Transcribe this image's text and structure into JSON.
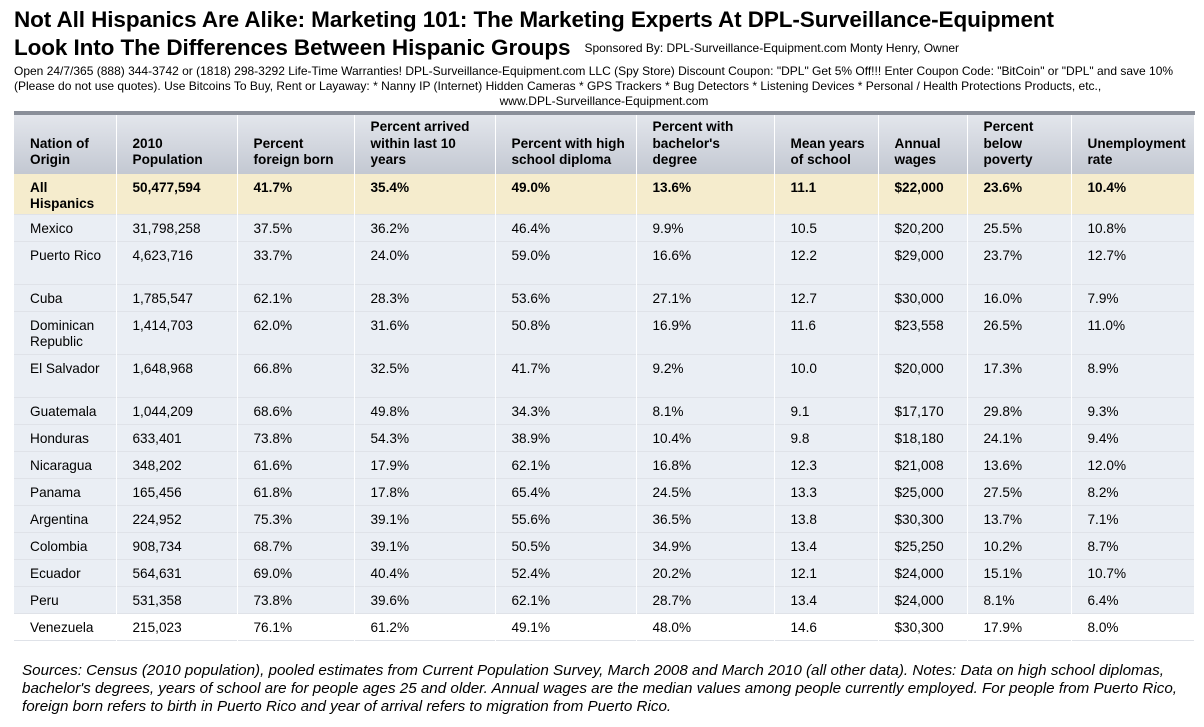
{
  "title": {
    "line1": "Not All Hispanics Are Alike:  Marketing 101: The Marketing Experts At DPL-Surveillance-Equipment",
    "line2": "Look Into The Differences Between Hispanic Groups",
    "sponsor": "Sponsored By: DPL-Surveillance-Equipment.com  Monty Henry, Owner"
  },
  "promo": {
    "text": "Open 24/7/365 (888) 344-3742 or (1818) 298-3292  Life-Time Warranties! DPL-Surveillance-Equipment.com LLC (Spy Store) Discount Coupon: \"DPL\" Get 5% Off!!! Enter Coupon Code: \"BitCoin\" or \"DPL\" and save 10% (Please do not use quotes). Use Bitcoins To Buy, Rent or Layaway:  * Nanny IP (Internet) Hidden Cameras  * GPS Trackers * Bug Detectors  * Listening Devices  * Personal / Health Protections Products, etc.,",
    "url": "www.DPL-Surveillance-Equipment.com"
  },
  "table": {
    "headers": [
      "Nation of Origin",
      "2010 Population",
      "Percent foreign born",
      "Percent arrived within last 10 years",
      "Percent with high school diploma",
      "Percent with bachelor's degree",
      "Mean years of school",
      "Annual wages",
      "Percent below poverty",
      "Unemployment rate"
    ],
    "rows": [
      [
        "All Hispanics",
        "50,477,594",
        "41.7%",
        "35.4%",
        "49.0%",
        "13.6%",
        "11.1",
        "$22,000",
        "23.6%",
        "10.4%"
      ],
      [
        "Mexico",
        "31,798,258",
        "37.5%",
        "36.2%",
        "46.4%",
        "9.9%",
        "10.5",
        "$20,200",
        "25.5%",
        "10.8%"
      ],
      [
        "Puerto Rico",
        "4,623,716",
        "33.7%",
        "24.0%",
        "59.0%",
        "16.6%",
        "12.2",
        "$29,000",
        "23.7%",
        "12.7%"
      ],
      [
        "Cuba",
        "1,785,547",
        "62.1%",
        "28.3%",
        "53.6%",
        "27.1%",
        "12.7",
        "$30,000",
        "16.0%",
        "7.9%"
      ],
      [
        "Dominican Republic",
        "1,414,703",
        "62.0%",
        "31.6%",
        "50.8%",
        "16.9%",
        "11.6",
        "$23,558",
        "26.5%",
        "11.0%"
      ],
      [
        "El Salvador",
        "1,648,968",
        "66.8%",
        "32.5%",
        "41.7%",
        "9.2%",
        "10.0",
        "$20,000",
        "17.3%",
        "8.9%"
      ],
      [
        "Guatemala",
        "1,044,209",
        "68.6%",
        "49.8%",
        "34.3%",
        "8.1%",
        "9.1",
        "$17,170",
        "29.8%",
        "9.3%"
      ],
      [
        "Honduras",
        "633,401",
        "73.8%",
        "54.3%",
        "38.9%",
        "10.4%",
        "9.8",
        "$18,180",
        "24.1%",
        "9.4%"
      ],
      [
        "Nicaragua",
        "348,202",
        "61.6%",
        "17.9%",
        "62.1%",
        "16.8%",
        "12.3",
        "$21,008",
        "13.6%",
        "12.0%"
      ],
      [
        "Panama",
        "165,456",
        "61.8%",
        "17.8%",
        "65.4%",
        "24.5%",
        "13.3",
        "$25,000",
        "27.5%",
        "8.2%"
      ],
      [
        "Argentina",
        "224,952",
        "75.3%",
        "39.1%",
        "55.6%",
        "36.5%",
        "13.8",
        "$30,300",
        "13.7%",
        "7.1%"
      ],
      [
        "Colombia",
        "908,734",
        "68.7%",
        "39.1%",
        "50.5%",
        "34.9%",
        "13.4",
        "$25,250",
        "10.2%",
        "8.7%"
      ],
      [
        "Ecuador",
        "564,631",
        "69.0%",
        "40.4%",
        "52.4%",
        "20.2%",
        "12.1",
        "$24,000",
        "15.1%",
        "10.7%"
      ],
      [
        "Peru",
        "531,358",
        "73.8%",
        "39.6%",
        "62.1%",
        "28.7%",
        "13.4",
        "$24,000",
        "8.1%",
        "6.4%"
      ],
      [
        "Venezuela",
        "215,023",
        "76.1%",
        "61.2%",
        "49.1%",
        "48.0%",
        "14.6",
        "$30,300",
        "17.9%",
        "8.0%"
      ]
    ]
  },
  "notes": "Sources: Census (2010 population), pooled estimates from Current Population Survey, March 2008 and March 2010 (all other data). Notes: Data on high school diplomas, bachelor's degrees, years of school are for people ages 25 and older. Annual wages are the median values among people currently employed. For people from Puerto Rico, foreign born refers to birth in Puerto Rico and year of arrival refers to migration from Puerto Rico.",
  "colors": {
    "header_bg": "#d0d4dc",
    "highlight_row": "#f5eccd",
    "alt_row": "#eaeef4"
  }
}
